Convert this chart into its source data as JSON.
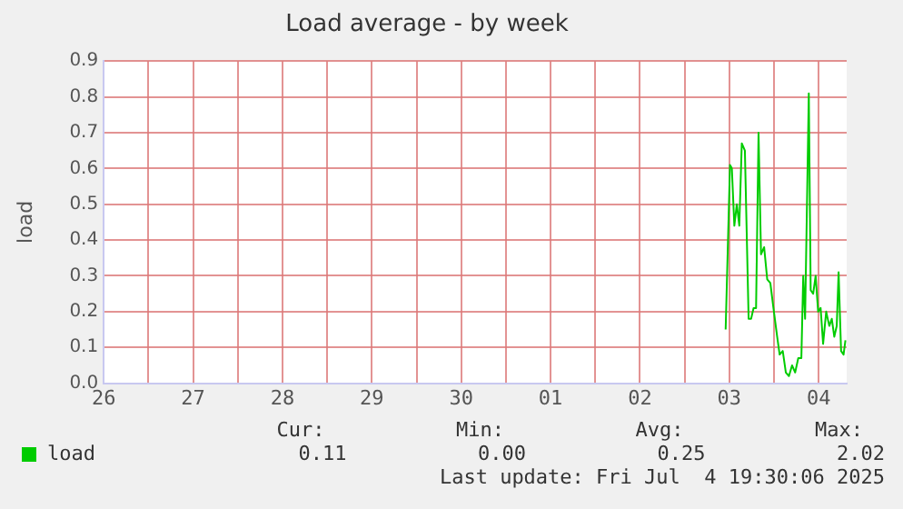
{
  "chart_data": {
    "type": "line",
    "title": "Load average - by week",
    "ylabel": "load",
    "xlim": [
      "2025-06-26T12:00",
      "2025-07-04T19:30"
    ],
    "xticks": [
      {
        "value": "2025-06-26T12:00",
        "label": "26"
      },
      {
        "value": "2025-06-27T00:00",
        "label": null
      },
      {
        "value": "2025-06-27T12:00",
        "label": "27"
      },
      {
        "value": "2025-06-28T00:00",
        "label": null
      },
      {
        "value": "2025-06-28T12:00",
        "label": "28"
      },
      {
        "value": "2025-06-29T00:00",
        "label": null
      },
      {
        "value": "2025-06-29T12:00",
        "label": "29"
      },
      {
        "value": "2025-06-30T00:00",
        "label": null
      },
      {
        "value": "2025-06-30T12:00",
        "label": "30"
      },
      {
        "value": "2025-07-01T00:00",
        "label": null
      },
      {
        "value": "2025-07-01T12:00",
        "label": "01"
      },
      {
        "value": "2025-07-02T00:00",
        "label": null
      },
      {
        "value": "2025-07-02T12:00",
        "label": "02"
      },
      {
        "value": "2025-07-03T00:00",
        "label": null
      },
      {
        "value": "2025-07-03T12:00",
        "label": "03"
      },
      {
        "value": "2025-07-04T00:00",
        "label": null
      },
      {
        "value": "2025-07-04T12:00",
        "label": "04"
      }
    ],
    "ylim": [
      0,
      0.9
    ],
    "yticks": [
      {
        "value": 0,
        "label": "0.0"
      },
      {
        "value": 0.1,
        "label": "0.1"
      },
      {
        "value": 0.2,
        "label": "0.2"
      },
      {
        "value": 0.3,
        "label": "0.3"
      },
      {
        "value": 0.4,
        "label": "0.4"
      },
      {
        "value": 0.5,
        "label": "0.5"
      },
      {
        "value": 0.6,
        "label": "0.6"
      },
      {
        "value": 0.7,
        "label": "0.7"
      },
      {
        "value": 0.8,
        "label": "0.8"
      },
      {
        "value": 0.9,
        "label": "0.9"
      }
    ],
    "grid": true,
    "legend": "bottom",
    "marker": "none",
    "line_style": "solid",
    "x": [
      "2025-07-03T11:00",
      "2025-07-03T12:10",
      "2025-07-03T12:40",
      "2025-07-03T13:20",
      "2025-07-03T14:00",
      "2025-07-03T14:40",
      "2025-07-03T15:20",
      "2025-07-03T16:10",
      "2025-07-03T17:10",
      "2025-07-03T17:50",
      "2025-07-03T18:30",
      "2025-07-03T19:10",
      "2025-07-03T19:50",
      "2025-07-03T20:30",
      "2025-07-03T21:20",
      "2025-07-03T22:10",
      "2025-07-03T23:00",
      "2025-07-03T23:50",
      "2025-07-04T00:50",
      "2025-07-04T01:30",
      "2025-07-04T02:20",
      "2025-07-04T03:10",
      "2025-07-04T04:00",
      "2025-07-04T04:50",
      "2025-07-04T05:40",
      "2025-07-04T06:30",
      "2025-07-04T07:20",
      "2025-07-04T07:50",
      "2025-07-04T08:20",
      "2025-07-04T09:20",
      "2025-07-04T09:50",
      "2025-07-04T10:30",
      "2025-07-04T11:10",
      "2025-07-04T11:50",
      "2025-07-04T12:30",
      "2025-07-04T13:10",
      "2025-07-04T14:00",
      "2025-07-04T14:50",
      "2025-07-04T15:30",
      "2025-07-04T16:10",
      "2025-07-04T16:50",
      "2025-07-04T17:20",
      "2025-07-04T18:00",
      "2025-07-04T18:40",
      "2025-07-04T19:10"
    ],
    "series": [
      {
        "name": "load",
        "color": "#00cc00",
        "values": [
          0.15,
          0.61,
          0.6,
          0.44,
          0.5,
          0.44,
          0.67,
          0.65,
          0.18,
          0.18,
          0.21,
          0.21,
          0.7,
          0.36,
          0.38,
          0.29,
          0.28,
          0.21,
          0.13,
          0.08,
          0.09,
          0.03,
          0.02,
          0.05,
          0.03,
          0.07,
          0.07,
          0.3,
          0.18,
          0.81,
          0.26,
          0.25,
          0.3,
          0.2,
          0.21,
          0.11,
          0.2,
          0.16,
          0.18,
          0.13,
          0.16,
          0.31,
          0.09,
          0.08,
          0.12
        ]
      }
    ],
    "annotations": [
      "Cur:",
      "Min:",
      "Avg:",
      "Max:",
      "0.11",
      "0.00",
      "0.25",
      "2.02",
      "Last update: Fri Jul  4 19:30:06 2025"
    ]
  }
}
